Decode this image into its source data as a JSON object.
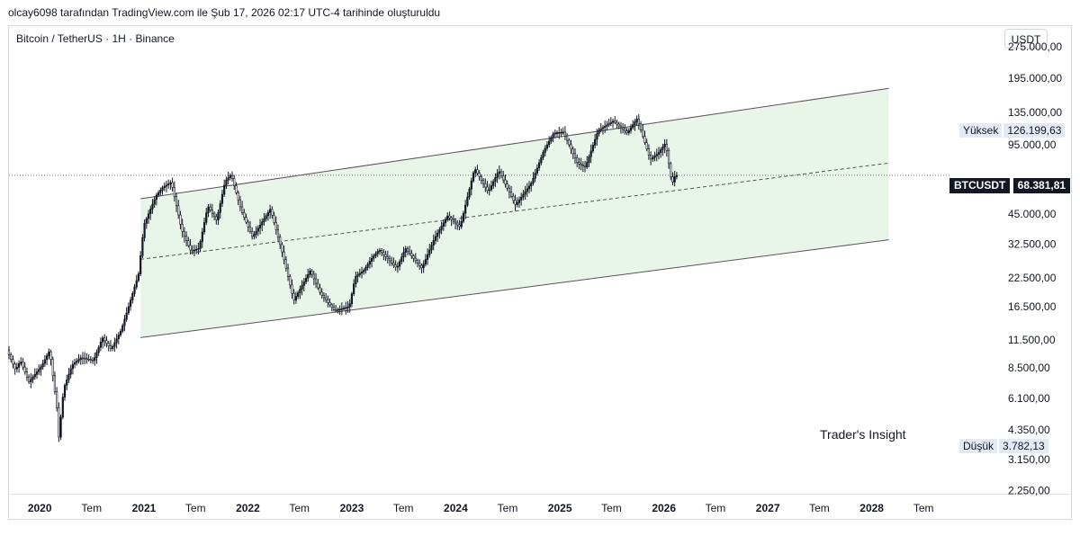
{
  "caption": "olcay6098 tarafından TradingView.com ile Şub 17, 2026 02:17 UTC-4 tarihinde oluşturuldu",
  "symbol_line": "Bitcoin / TetherUS · 1H · Binance",
  "currency_button": "USDT",
  "watermark": "Trader's Insight",
  "high_marker": {
    "label": "Yüksek",
    "value": "126.199,63"
  },
  "low_marker": {
    "label": "Düşük",
    "value": "3.782,13"
  },
  "last_price": {
    "symbol": "BTCUSDT",
    "value": "68.381,81"
  },
  "colors": {
    "up": "#131722",
    "down": "#131722",
    "channel_fill": "#e9f5e9",
    "channel_line": "#131722",
    "grid": "#d6d9de"
  },
  "chart_data": {
    "type": "candlestick",
    "title": "Bitcoin / TetherUS · 1H · Binance",
    "y_scale": "log",
    "ylim": [
      2200,
      340000
    ],
    "xlim": [
      "2019-09-15",
      "2028-09-30"
    ],
    "y_ticks": [
      {
        "value": 275000,
        "label": "275.000,00"
      },
      {
        "value": 195000,
        "label": "195.000,00"
      },
      {
        "value": 135000,
        "label": "135.000,00"
      },
      {
        "value": 95000,
        "label": "95.000,00"
      },
      {
        "value": 45000,
        "label": "45.000,00"
      },
      {
        "value": 32500,
        "label": "32.500,00"
      },
      {
        "value": 22500,
        "label": "22.500,00"
      },
      {
        "value": 16500,
        "label": "16.500,00"
      },
      {
        "value": 11500,
        "label": "11.500,00"
      },
      {
        "value": 8500,
        "label": "8.500,00"
      },
      {
        "value": 6100,
        "label": "6.100,00"
      },
      {
        "value": 4350,
        "label": "4.350,00"
      },
      {
        "value": 3150,
        "label": "3.150,00"
      },
      {
        "value": 2250,
        "label": "2.250,00"
      }
    ],
    "x_ticks": [
      {
        "date": "2020-01-01",
        "label": "2020",
        "kind": "year"
      },
      {
        "date": "2020-07-01",
        "label": "Tem",
        "kind": "month"
      },
      {
        "date": "2021-01-01",
        "label": "2021",
        "kind": "year"
      },
      {
        "date": "2021-07-01",
        "label": "Tem",
        "kind": "month"
      },
      {
        "date": "2022-01-01",
        "label": "2022",
        "kind": "year"
      },
      {
        "date": "2022-07-01",
        "label": "Tem",
        "kind": "month"
      },
      {
        "date": "2023-01-01",
        "label": "2023",
        "kind": "year"
      },
      {
        "date": "2023-07-01",
        "label": "Tem",
        "kind": "month"
      },
      {
        "date": "2024-01-01",
        "label": "2024",
        "kind": "year"
      },
      {
        "date": "2024-07-01",
        "label": "Tem",
        "kind": "month"
      },
      {
        "date": "2025-01-01",
        "label": "2025",
        "kind": "year"
      },
      {
        "date": "2025-07-01",
        "label": "Tem",
        "kind": "month"
      },
      {
        "date": "2026-01-01",
        "label": "2026",
        "kind": "year"
      },
      {
        "date": "2026-07-01",
        "label": "Tem",
        "kind": "month"
      },
      {
        "date": "2027-01-01",
        "label": "2027",
        "kind": "year"
      },
      {
        "date": "2027-07-01",
        "label": "Tem",
        "kind": "month"
      },
      {
        "date": "2028-01-01",
        "label": "2028",
        "kind": "year"
      },
      {
        "date": "2028-07-01",
        "label": "Tem",
        "kind": "month"
      }
    ],
    "price_series": [
      [
        "2019-09-15",
        10300
      ],
      [
        "2019-10-15",
        8300
      ],
      [
        "2019-11-01",
        9200
      ],
      [
        "2019-12-01",
        7300
      ],
      [
        "2020-01-15",
        8700
      ],
      [
        "2020-02-12",
        10300
      ],
      [
        "2020-03-12",
        5000
      ],
      [
        "2020-03-13",
        3782
      ],
      [
        "2020-04-01",
        6800
      ],
      [
        "2020-05-01",
        8800
      ],
      [
        "2020-06-01",
        9500
      ],
      [
        "2020-07-15",
        9200
      ],
      [
        "2020-08-15",
        11800
      ],
      [
        "2020-09-15",
        10400
      ],
      [
        "2020-10-20",
        12800
      ],
      [
        "2020-11-15",
        16500
      ],
      [
        "2020-12-20",
        23500
      ],
      [
        "2021-01-08",
        40000
      ],
      [
        "2021-02-20",
        55000
      ],
      [
        "2021-03-15",
        60000
      ],
      [
        "2021-04-14",
        63500
      ],
      [
        "2021-05-20",
        38000
      ],
      [
        "2021-06-22",
        30000
      ],
      [
        "2021-07-20",
        31000
      ],
      [
        "2021-08-20",
        49000
      ],
      [
        "2021-09-20",
        42000
      ],
      [
        "2021-10-20",
        64000
      ],
      [
        "2021-11-10",
        68900
      ],
      [
        "2021-12-15",
        47000
      ],
      [
        "2022-01-24",
        35000
      ],
      [
        "2022-03-28",
        47500
      ],
      [
        "2022-05-12",
        28500
      ],
      [
        "2022-06-18",
        17600
      ],
      [
        "2022-08-15",
        24400
      ],
      [
        "2022-09-20",
        19000
      ],
      [
        "2022-11-09",
        15800
      ],
      [
        "2022-12-30",
        16500
      ],
      [
        "2023-01-20",
        22800
      ],
      [
        "2023-02-20",
        24500
      ],
      [
        "2023-03-20",
        28000
      ],
      [
        "2023-04-14",
        30500
      ],
      [
        "2023-06-15",
        25000
      ],
      [
        "2023-07-15",
        31000
      ],
      [
        "2023-09-11",
        25000
      ],
      [
        "2023-10-25",
        34500
      ],
      [
        "2023-12-10",
        44000
      ],
      [
        "2024-01-23",
        39000
      ],
      [
        "2024-03-14",
        73800
      ],
      [
        "2024-05-01",
        57000
      ],
      [
        "2024-06-07",
        71900
      ],
      [
        "2024-08-05",
        49500
      ],
      [
        "2024-09-30",
        63000
      ],
      [
        "2024-11-12",
        89000
      ],
      [
        "2024-12-17",
        108000
      ],
      [
        "2025-01-20",
        109000
      ],
      [
        "2025-03-10",
        78000
      ],
      [
        "2025-04-07",
        74500
      ],
      [
        "2025-05-22",
        111000
      ],
      [
        "2025-07-14",
        123000
      ],
      [
        "2025-09-01",
        108000
      ],
      [
        "2025-10-06",
        126199
      ],
      [
        "2025-11-21",
        81000
      ],
      [
        "2025-12-20",
        87000
      ],
      [
        "2026-01-14",
        97000
      ],
      [
        "2026-02-05",
        62000
      ],
      [
        "2026-02-17",
        68381
      ]
    ],
    "channel": {
      "upper": [
        [
          "2020-12-20",
          53000
        ],
        [
          "2028-03-01",
          175000
        ]
      ],
      "middle": [
        [
          "2020-12-20",
          27500
        ],
        [
          "2028-03-01",
          78000
        ]
      ],
      "lower": [
        [
          "2020-12-20",
          11800
        ],
        [
          "2028-03-01",
          34000
        ]
      ]
    },
    "last_price_line": 68381.81
  }
}
